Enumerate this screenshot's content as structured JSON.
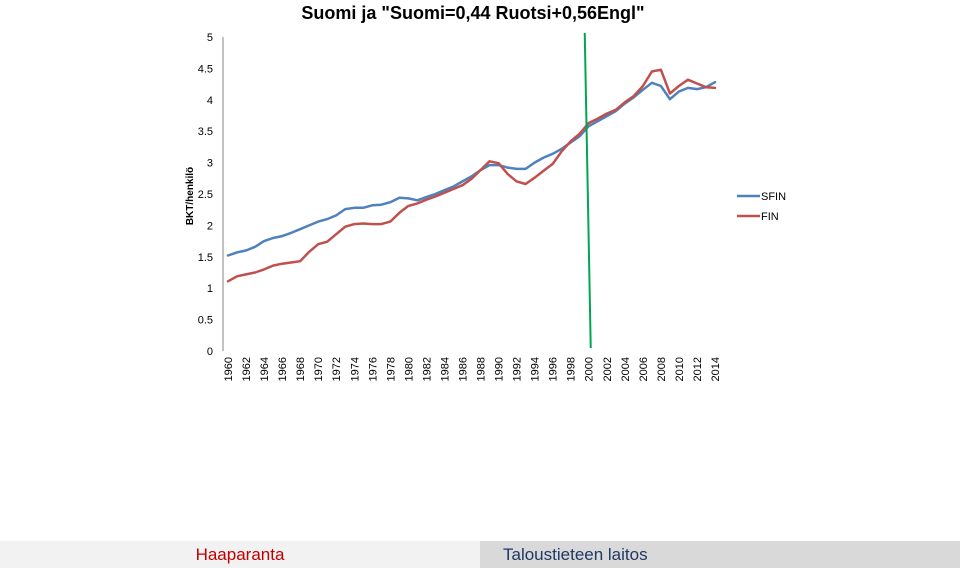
{
  "chart_data": {
    "type": "line",
    "title": "Suomi ja \"Suomi=0,44 Ruotsi+0,56Engl\"",
    "ylabel": "BKT/henkilö",
    "xlabel": "",
    "ylim": [
      0,
      5
    ],
    "yticks": [
      "0",
      "0.5",
      "1",
      "1.5",
      "2",
      "2.5",
      "3",
      "3.5",
      "4",
      "4.5",
      "5"
    ],
    "x": [
      1960,
      1961,
      1962,
      1963,
      1964,
      1965,
      1966,
      1967,
      1968,
      1969,
      1970,
      1971,
      1972,
      1973,
      1974,
      1975,
      1976,
      1977,
      1978,
      1979,
      1980,
      1981,
      1982,
      1983,
      1984,
      1985,
      1986,
      1987,
      1988,
      1989,
      1990,
      1991,
      1992,
      1993,
      1994,
      1995,
      1996,
      1997,
      1998,
      1999,
      2000,
      2001,
      2002,
      2003,
      2004,
      2005,
      2006,
      2007,
      2008,
      2009,
      2010,
      2011,
      2012,
      2013,
      2014
    ],
    "xticks": [
      "1960",
      "1962",
      "1964",
      "1966",
      "1968",
      "1970",
      "1972",
      "1974",
      "1976",
      "1978",
      "1980",
      "1982",
      "1984",
      "1986",
      "1988",
      "1990",
      "1992",
      "1994",
      "1996",
      "1998",
      "2000",
      "2002",
      "2004",
      "2006",
      "2008",
      "2010",
      "2012",
      "2014"
    ],
    "series": [
      {
        "name": "SFIN",
        "color": "#4f81bd",
        "values": [
          1.52,
          1.57,
          1.6,
          1.66,
          1.75,
          1.8,
          1.83,
          1.88,
          1.94,
          2.0,
          2.06,
          2.1,
          2.16,
          2.26,
          2.28,
          2.28,
          2.32,
          2.33,
          2.37,
          2.44,
          2.43,
          2.4,
          2.45,
          2.5,
          2.56,
          2.62,
          2.7,
          2.78,
          2.88,
          2.96,
          2.96,
          2.92,
          2.9,
          2.9,
          3.0,
          3.08,
          3.14,
          3.22,
          3.32,
          3.42,
          3.58,
          3.66,
          3.74,
          3.82,
          3.94,
          4.04,
          4.16,
          4.27,
          4.22,
          4.01,
          4.13,
          4.19,
          4.17,
          4.2,
          4.28
        ]
      },
      {
        "name": "FIN",
        "color": "#c0504d",
        "values": [
          1.11,
          1.19,
          1.22,
          1.25,
          1.3,
          1.36,
          1.39,
          1.41,
          1.43,
          1.58,
          1.7,
          1.74,
          1.86,
          1.98,
          2.02,
          2.03,
          2.02,
          2.02,
          2.06,
          2.2,
          2.31,
          2.35,
          2.41,
          2.46,
          2.52,
          2.58,
          2.64,
          2.74,
          2.88,
          3.02,
          2.99,
          2.82,
          2.7,
          2.66,
          2.76,
          2.87,
          2.98,
          3.18,
          3.34,
          3.46,
          3.63,
          3.7,
          3.78,
          3.84,
          3.96,
          4.06,
          4.22,
          4.45,
          4.48,
          4.1,
          4.22,
          4.32,
          4.26,
          4.2,
          4.19
        ]
      }
    ],
    "marker_year": 2000,
    "marker_color": "#00a651",
    "legend_position": "right",
    "grid": false
  },
  "footer": {
    "left_text": "Haaparanta",
    "right_text": "Taloustieteen laitos"
  }
}
